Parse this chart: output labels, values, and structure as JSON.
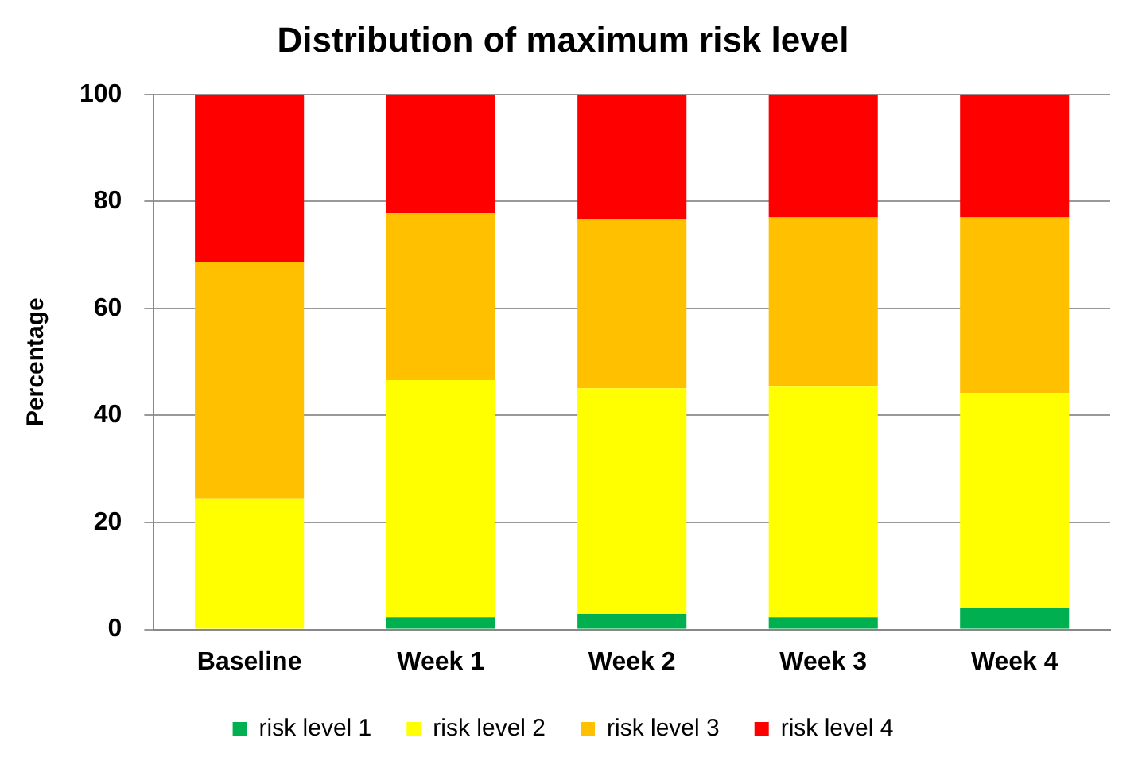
{
  "chart_data": {
    "type": "bar",
    "title": "Distribution of maximum risk level",
    "ylabel": "Percentage",
    "categories": [
      "Baseline",
      "Week 1",
      "Week 2",
      "Week 3",
      "Week 4"
    ],
    "series": [
      {
        "name": "risk level 1",
        "color": "#00b050",
        "values": [
          0,
          2.3,
          2.9,
          2.3,
          4.1
        ]
      },
      {
        "name": "risk level 2",
        "color": "#ffff00",
        "values": [
          24.5,
          44.3,
          42.2,
          43.1,
          40.1
        ]
      },
      {
        "name": "risk level 3",
        "color": "#ffc000",
        "values": [
          44.1,
          31.2,
          31.6,
          31.6,
          32.8
        ]
      },
      {
        "name": "risk level 4",
        "color": "#ff0000",
        "values": [
          31.4,
          22.2,
          23.3,
          23.0,
          23.0
        ]
      }
    ],
    "stacked": true,
    "ylim": [
      0,
      100
    ],
    "yticks": [
      0,
      20,
      40,
      60,
      80,
      100
    ],
    "grid": "y",
    "legend": "bottom"
  }
}
